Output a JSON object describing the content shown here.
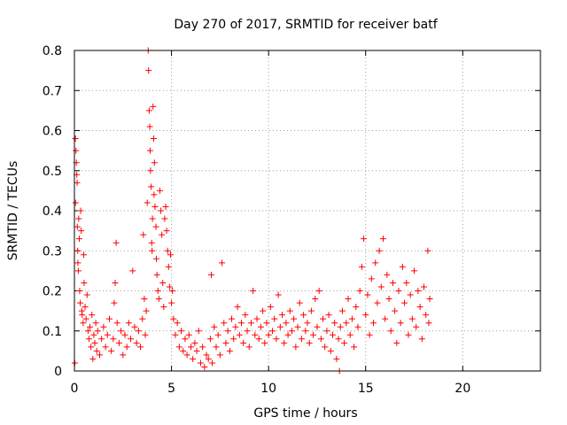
{
  "chart_data": {
    "type": "scatter",
    "title": "Day 270 of 2017, SRMTID for receiver batf",
    "xlabel": "GPS time / hours",
    "ylabel": "SRMTID / TECUs",
    "xlim": [
      0,
      24
    ],
    "ylim": [
      0,
      0.8
    ],
    "xticks": [
      0,
      5,
      10,
      15,
      20
    ],
    "xtick_labels": [
      "0",
      "5",
      "10",
      "15",
      "20"
    ],
    "yticks": [
      0,
      0.1,
      0.2,
      0.3,
      0.4,
      0.5,
      0.6,
      0.7,
      0.8
    ],
    "ytick_labels": [
      "0",
      "0.1",
      "0.2",
      "0.3",
      "0.4",
      "0.5",
      "0.6",
      "0.7",
      "0.8"
    ],
    "grid": true,
    "marker": "+",
    "color": "#ff0000",
    "series": [
      {
        "name": "batf",
        "points": [
          [
            0.02,
            0.02
          ],
          [
            0.05,
            0.58
          ],
          [
            0.06,
            0.42
          ],
          [
            0.08,
            0.55
          ],
          [
            0.1,
            0.52
          ],
          [
            0.12,
            0.49
          ],
          [
            0.14,
            0.47
          ],
          [
            0.15,
            0.36
          ],
          [
            0.17,
            0.3
          ],
          [
            0.18,
            0.27
          ],
          [
            0.2,
            0.25
          ],
          [
            0.22,
            0.38
          ],
          [
            0.25,
            0.33
          ],
          [
            0.27,
            0.2
          ],
          [
            0.3,
            0.17
          ],
          [
            0.32,
            0.4
          ],
          [
            0.35,
            0.35
          ],
          [
            0.38,
            0.15
          ],
          [
            0.4,
            0.14
          ],
          [
            0.45,
            0.12
          ],
          [
            0.48,
            0.29
          ],
          [
            0.5,
            0.22
          ],
          [
            0.55,
            0.16
          ],
          [
            0.6,
            0.13
          ],
          [
            0.65,
            0.19
          ],
          [
            0.7,
            0.1
          ],
          [
            0.75,
            0.08
          ],
          [
            0.8,
            0.11
          ],
          [
            0.85,
            0.06
          ],
          [
            0.9,
            0.14
          ],
          [
            0.95,
            0.03
          ],
          [
            1.0,
            0.09
          ],
          [
            1.05,
            0.07
          ],
          [
            1.1,
            0.12
          ],
          [
            1.15,
            0.05
          ],
          [
            1.2,
            0.1
          ],
          [
            1.3,
            0.04
          ],
          [
            1.4,
            0.08
          ],
          [
            1.5,
            0.11
          ],
          [
            1.6,
            0.06
          ],
          [
            1.7,
            0.09
          ],
          [
            1.8,
            0.13
          ],
          [
            1.9,
            0.05
          ],
          [
            2.0,
            0.08
          ],
          [
            2.05,
            0.17
          ],
          [
            2.1,
            0.22
          ],
          [
            2.15,
            0.32
          ],
          [
            2.2,
            0.12
          ],
          [
            2.3,
            0.07
          ],
          [
            2.4,
            0.1
          ],
          [
            2.5,
            0.04
          ],
          [
            2.6,
            0.09
          ],
          [
            2.7,
            0.06
          ],
          [
            2.8,
            0.12
          ],
          [
            2.9,
            0.08
          ],
          [
            3.0,
            0.25
          ],
          [
            3.1,
            0.11
          ],
          [
            3.2,
            0.07
          ],
          [
            3.3,
            0.1
          ],
          [
            3.4,
            0.06
          ],
          [
            3.5,
            0.13
          ],
          [
            3.55,
            0.34
          ],
          [
            3.6,
            0.18
          ],
          [
            3.65,
            0.09
          ],
          [
            3.7,
            0.15
          ],
          [
            3.75,
            0.42
          ],
          [
            3.8,
            0.8
          ],
          [
            3.82,
            0.75
          ],
          [
            3.85,
            0.65
          ],
          [
            3.88,
            0.61
          ],
          [
            3.9,
            0.55
          ],
          [
            3.92,
            0.5
          ],
          [
            3.95,
            0.46
          ],
          [
            3.98,
            0.32
          ],
          [
            4.0,
            0.3
          ],
          [
            4.02,
            0.38
          ],
          [
            4.05,
            0.66
          ],
          [
            4.08,
            0.58
          ],
          [
            4.1,
            0.44
          ],
          [
            4.12,
            0.52
          ],
          [
            4.15,
            0.41
          ],
          [
            4.2,
            0.36
          ],
          [
            4.22,
            0.28
          ],
          [
            4.25,
            0.24
          ],
          [
            4.3,
            0.2
          ],
          [
            4.35,
            0.18
          ],
          [
            4.4,
            0.45
          ],
          [
            4.45,
            0.4
          ],
          [
            4.5,
            0.34
          ],
          [
            4.55,
            0.22
          ],
          [
            4.6,
            0.16
          ],
          [
            4.65,
            0.38
          ],
          [
            4.7,
            0.41
          ],
          [
            4.75,
            0.35
          ],
          [
            4.8,
            0.3
          ],
          [
            4.85,
            0.26
          ],
          [
            4.9,
            0.21
          ],
          [
            4.95,
            0.29
          ],
          [
            5.0,
            0.17
          ],
          [
            5.05,
            0.2
          ],
          [
            5.1,
            0.13
          ],
          [
            5.2,
            0.09
          ],
          [
            5.3,
            0.12
          ],
          [
            5.4,
            0.06
          ],
          [
            5.5,
            0.1
          ],
          [
            5.6,
            0.05
          ],
          [
            5.7,
            0.08
          ],
          [
            5.8,
            0.04
          ],
          [
            5.9,
            0.09
          ],
          [
            6.0,
            0.06
          ],
          [
            6.1,
            0.03
          ],
          [
            6.2,
            0.07
          ],
          [
            6.3,
            0.05
          ],
          [
            6.4,
            0.1
          ],
          [
            6.5,
            0.02
          ],
          [
            6.6,
            0.06
          ],
          [
            6.7,
            0.01
          ],
          [
            6.8,
            0.04
          ],
          [
            6.9,
            0.03
          ],
          [
            7.0,
            0.08
          ],
          [
            7.05,
            0.24
          ],
          [
            7.1,
            0.02
          ],
          [
            7.2,
            0.11
          ],
          [
            7.3,
            0.06
          ],
          [
            7.4,
            0.09
          ],
          [
            7.5,
            0.04
          ],
          [
            7.6,
            0.27
          ],
          [
            7.7,
            0.12
          ],
          [
            7.8,
            0.07
          ],
          [
            7.9,
            0.1
          ],
          [
            8.0,
            0.05
          ],
          [
            8.1,
            0.13
          ],
          [
            8.2,
            0.08
          ],
          [
            8.3,
            0.11
          ],
          [
            8.4,
            0.16
          ],
          [
            8.5,
            0.09
          ],
          [
            8.6,
            0.12
          ],
          [
            8.7,
            0.07
          ],
          [
            8.8,
            0.14
          ],
          [
            8.9,
            0.1
          ],
          [
            9.0,
            0.06
          ],
          [
            9.1,
            0.12
          ],
          [
            9.2,
            0.2
          ],
          [
            9.3,
            0.09
          ],
          [
            9.4,
            0.13
          ],
          [
            9.5,
            0.08
          ],
          [
            9.6,
            0.11
          ],
          [
            9.7,
            0.15
          ],
          [
            9.8,
            0.07
          ],
          [
            9.9,
            0.12
          ],
          [
            10.0,
            0.09
          ],
          [
            10.1,
            0.16
          ],
          [
            10.2,
            0.1
          ],
          [
            10.3,
            0.13
          ],
          [
            10.4,
            0.08
          ],
          [
            10.5,
            0.19
          ],
          [
            10.6,
            0.11
          ],
          [
            10.7,
            0.14
          ],
          [
            10.8,
            0.07
          ],
          [
            10.9,
            0.12
          ],
          [
            11.0,
            0.09
          ],
          [
            11.1,
            0.15
          ],
          [
            11.2,
            0.1
          ],
          [
            11.3,
            0.13
          ],
          [
            11.4,
            0.06
          ],
          [
            11.5,
            0.11
          ],
          [
            11.6,
            0.17
          ],
          [
            11.7,
            0.08
          ],
          [
            11.8,
            0.14
          ],
          [
            11.9,
            0.1
          ],
          [
            12.0,
            0.12
          ],
          [
            12.1,
            0.07
          ],
          [
            12.2,
            0.15
          ],
          [
            12.3,
            0.09
          ],
          [
            12.4,
            0.18
          ],
          [
            12.5,
            0.11
          ],
          [
            12.6,
            0.2
          ],
          [
            12.7,
            0.08
          ],
          [
            12.8,
            0.13
          ],
          [
            12.9,
            0.06
          ],
          [
            13.0,
            0.1
          ],
          [
            13.1,
            0.14
          ],
          [
            13.2,
            0.05
          ],
          [
            13.3,
            0.09
          ],
          [
            13.4,
            0.12
          ],
          [
            13.5,
            0.03
          ],
          [
            13.6,
            0.08
          ],
          [
            13.65,
            0.0
          ],
          [
            13.7,
            0.11
          ],
          [
            13.8,
            0.15
          ],
          [
            13.9,
            0.07
          ],
          [
            14.0,
            0.12
          ],
          [
            14.1,
            0.18
          ],
          [
            14.2,
            0.09
          ],
          [
            14.3,
            0.13
          ],
          [
            14.4,
            0.06
          ],
          [
            14.5,
            0.16
          ],
          [
            14.6,
            0.11
          ],
          [
            14.7,
            0.2
          ],
          [
            14.8,
            0.26
          ],
          [
            14.9,
            0.33
          ],
          [
            15.0,
            0.14
          ],
          [
            15.1,
            0.19
          ],
          [
            15.2,
            0.09
          ],
          [
            15.3,
            0.23
          ],
          [
            15.4,
            0.12
          ],
          [
            15.5,
            0.27
          ],
          [
            15.6,
            0.17
          ],
          [
            15.7,
            0.3
          ],
          [
            15.8,
            0.21
          ],
          [
            15.9,
            0.33
          ],
          [
            16.0,
            0.13
          ],
          [
            16.1,
            0.24
          ],
          [
            16.2,
            0.18
          ],
          [
            16.3,
            0.1
          ],
          [
            16.4,
            0.22
          ],
          [
            16.5,
            0.15
          ],
          [
            16.6,
            0.07
          ],
          [
            16.7,
            0.2
          ],
          [
            16.8,
            0.12
          ],
          [
            16.9,
            0.26
          ],
          [
            17.0,
            0.17
          ],
          [
            17.1,
            0.22
          ],
          [
            17.2,
            0.09
          ],
          [
            17.3,
            0.19
          ],
          [
            17.4,
            0.13
          ],
          [
            17.5,
            0.25
          ],
          [
            17.6,
            0.11
          ],
          [
            17.7,
            0.2
          ],
          [
            17.8,
            0.16
          ],
          [
            17.9,
            0.08
          ],
          [
            18.0,
            0.21
          ],
          [
            18.1,
            0.14
          ],
          [
            18.2,
            0.3
          ],
          [
            18.25,
            0.12
          ],
          [
            18.3,
            0.18
          ]
        ]
      }
    ]
  }
}
